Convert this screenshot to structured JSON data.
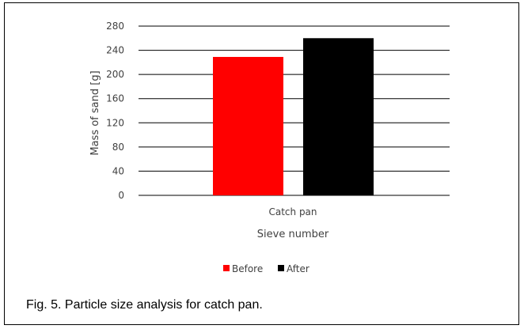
{
  "caption": "Fig. 5. Particle size analysis for catch pan.",
  "chart_data": {
    "type": "bar",
    "categories": [
      "Catch pan"
    ],
    "series": [
      {
        "name": "Before",
        "values": [
          229
        ],
        "color": "#ff0000"
      },
      {
        "name": "After",
        "values": [
          260
        ],
        "color": "#000000"
      }
    ],
    "xlabel": "Sieve number",
    "ylabel": "Mass of sand [g]",
    "ylim": [
      0,
      280
    ],
    "yticks": [
      "0",
      "40",
      "80",
      "120",
      "160",
      "200",
      "240",
      "280"
    ],
    "grid": true,
    "legend_position": "bottom"
  }
}
